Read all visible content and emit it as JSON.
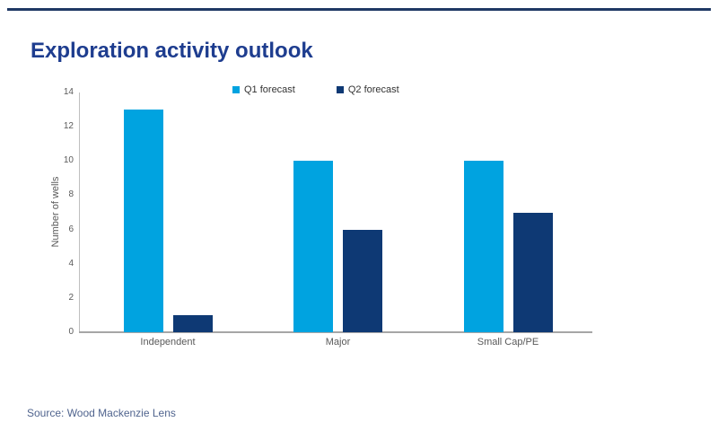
{
  "title": "Exploration activity outlook",
  "source_text": "Source: Wood Mackenzie Lens",
  "colors": {
    "accent_rule": "#1F3864",
    "title_text": "#1e3d8f",
    "q1_series": "#00A3E0",
    "q2_series": "#0E3974",
    "axis_line": "#A6A6A6",
    "tick_text": "#595959",
    "legend_text": "#333333",
    "source_text": "#50648E"
  },
  "chart_data": {
    "type": "bar",
    "title": "Exploration activity outlook",
    "categories": [
      "Independent",
      "Major",
      "Small Cap/PE"
    ],
    "series": [
      {
        "name": "Q1 forecast",
        "values": [
          13,
          10,
          10
        ],
        "color": "#00A3E0"
      },
      {
        "name": "Q2 forecast",
        "values": [
          1,
          6,
          7
        ],
        "color": "#0E3974"
      }
    ],
    "xlabel": "",
    "ylabel": "Number of wells",
    "ylim": [
      0,
      14
    ],
    "yticks": [
      0,
      2,
      4,
      6,
      8,
      10,
      12,
      14
    ],
    "grid": false,
    "legend_position": "top-center"
  }
}
